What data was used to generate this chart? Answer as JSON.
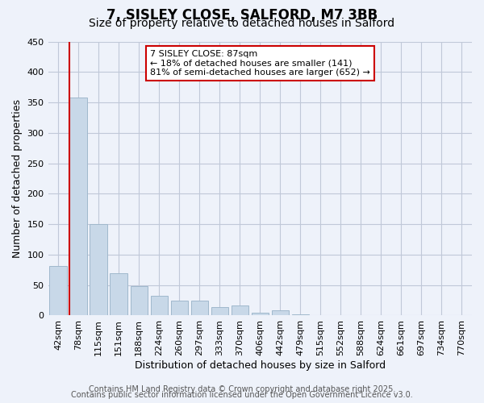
{
  "title": "7, SISLEY CLOSE, SALFORD, M7 3BB",
  "subtitle": "Size of property relative to detached houses in Salford",
  "xlabel": "Distribution of detached houses by size in Salford",
  "ylabel": "Number of detached properties",
  "bin_labels": [
    "42sqm",
    "78sqm",
    "115sqm",
    "151sqm",
    "188sqm",
    "224sqm",
    "260sqm",
    "297sqm",
    "333sqm",
    "370sqm",
    "406sqm",
    "442sqm",
    "479sqm",
    "515sqm",
    "552sqm",
    "588sqm",
    "624sqm",
    "661sqm",
    "697sqm",
    "734sqm",
    "770sqm"
  ],
  "bar_values": [
    82,
    358,
    150,
    70,
    48,
    32,
    25,
    25,
    14,
    17,
    5,
    8,
    2,
    0,
    0,
    0,
    0,
    0,
    0,
    0,
    0
  ],
  "bar_color": "#c8d8e8",
  "bar_edge_color": "#a0b8cc",
  "vline_color": "#cc0000",
  "annotation_text": "7 SISLEY CLOSE: 87sqm\n← 18% of detached houses are smaller (141)\n81% of semi-detached houses are larger (652) →",
  "annotation_box_color": "#ffffff",
  "annotation_box_edge_color": "#cc0000",
  "ylim": [
    0,
    450
  ],
  "yticks": [
    0,
    50,
    100,
    150,
    200,
    250,
    300,
    350,
    400,
    450
  ],
  "grid_color": "#c0c8d8",
  "background_color": "#eef2fa",
  "footer_line1": "Contains HM Land Registry data © Crown copyright and database right 2025.",
  "footer_line2": "Contains public sector information licensed under the Open Government Licence v3.0.",
  "title_fontsize": 12,
  "subtitle_fontsize": 10,
  "axis_label_fontsize": 9,
  "tick_fontsize": 8,
  "footer_fontsize": 7,
  "vline_bar_index": 1
}
